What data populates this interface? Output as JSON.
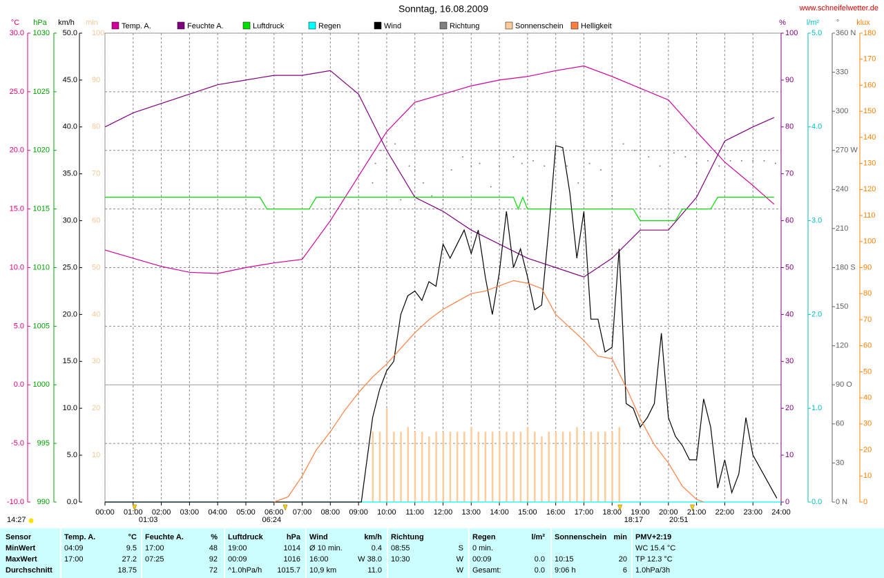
{
  "chart_data": {
    "type": "line",
    "title": "Sonntag, 16.08.2009",
    "source": "www.schneifelwetter.de",
    "grid": true,
    "xlim": [
      0,
      24
    ],
    "xticks": [
      {
        "value": 0,
        "label": "00:00"
      },
      {
        "value": 1,
        "label": "01:00"
      },
      {
        "value": 2,
        "label": "02:00"
      },
      {
        "value": 3,
        "label": "03:00"
      },
      {
        "value": 4,
        "label": "04:00"
      },
      {
        "value": 5,
        "label": "05:00"
      },
      {
        "value": 6,
        "label": "06:00"
      },
      {
        "value": 7,
        "label": "07:00"
      },
      {
        "value": 8,
        "label": "08:00"
      },
      {
        "value": 9,
        "label": "09:00"
      },
      {
        "value": 10,
        "label": "10:00"
      },
      {
        "value": 11,
        "label": "11:00"
      },
      {
        "value": 12,
        "label": "12:00"
      },
      {
        "value": 13,
        "label": "13:00"
      },
      {
        "value": 14,
        "label": "14:00"
      },
      {
        "value": 15,
        "label": "15:00"
      },
      {
        "value": 16,
        "label": "16:00"
      },
      {
        "value": 17,
        "label": "17:00"
      },
      {
        "value": 18,
        "label": "18:00"
      },
      {
        "value": 19,
        "label": "19:00"
      },
      {
        "value": 20,
        "label": "20:00"
      },
      {
        "value": 21,
        "label": "21:00"
      },
      {
        "value": 22,
        "label": "22:00"
      },
      {
        "value": 23,
        "label": "23:00"
      },
      {
        "value": 24,
        "label": "24:00"
      }
    ],
    "axes": [
      {
        "unit": "°C",
        "color": "#e0007f",
        "lim": [
          -10,
          30
        ],
        "ticks": [
          {
            "value": -10,
            "label": "-10.0"
          },
          {
            "value": -5,
            "label": "-5.0"
          },
          {
            "value": 0,
            "label": "0.0"
          },
          {
            "value": 5,
            "label": "5.0"
          },
          {
            "value": 10,
            "label": "10.0"
          },
          {
            "value": 15,
            "label": "15.0"
          },
          {
            "value": 20,
            "label": "20.0"
          },
          {
            "value": 25,
            "label": "25.0"
          },
          {
            "value": 30,
            "label": "30.0"
          }
        ]
      },
      {
        "unit": "hPa",
        "color": "#00a000",
        "lim": [
          990,
          1030
        ],
        "ticks": [
          990,
          995,
          1000,
          1005,
          1010,
          1015,
          1020,
          1025,
          1030
        ]
      },
      {
        "unit": "km/h",
        "color": "#000000",
        "lim": [
          0,
          50
        ],
        "ticks": [
          {
            "value": 0,
            "label": "0.0"
          },
          {
            "value": 5,
            "label": "5.0"
          },
          {
            "value": 10,
            "label": "10.0"
          },
          {
            "value": 15,
            "label": "15.0"
          },
          {
            "value": 20,
            "label": "20.0"
          },
          {
            "value": 25,
            "label": "25.0"
          },
          {
            "value": 30,
            "label": "30.0"
          },
          {
            "value": 35,
            "label": "35.0"
          },
          {
            "value": 40,
            "label": "40.0"
          },
          {
            "value": 45,
            "label": "45.0"
          },
          {
            "value": 50,
            "label": "50.0"
          }
        ]
      },
      {
        "unit": "min",
        "color": "#f5c896",
        "lim": [
          0,
          100
        ],
        "ticks": [
          10,
          20,
          30,
          40,
          50,
          60,
          70,
          80,
          90,
          100
        ]
      },
      {
        "unit": "%",
        "color": "#800080",
        "lim": [
          0,
          100
        ],
        "ticks": [
          0,
          10,
          20,
          30,
          40,
          50,
          60,
          70,
          80,
          90,
          100
        ]
      },
      {
        "unit": "l/m²",
        "color": "#00c0c0",
        "lim": [
          0,
          5
        ],
        "ticks": [
          {
            "value": 0,
            "label": "0.0"
          },
          {
            "value": 1,
            "label": "1.0"
          },
          {
            "value": 2,
            "label": "2.0"
          },
          {
            "value": 3,
            "label": "3.0"
          },
          {
            "value": 4,
            "label": "4.0"
          },
          {
            "value": 5,
            "label": "5.0"
          }
        ]
      },
      {
        "unit": "°",
        "color": "#606060",
        "lim": [
          0,
          360
        ],
        "ticks": [
          {
            "value": 0,
            "label": "0 N"
          },
          30,
          60,
          {
            "value": 90,
            "label": "90 O"
          },
          120,
          150,
          {
            "value": 180,
            "label": "180 S"
          },
          210,
          240,
          {
            "value": 270,
            "label": "270 W"
          },
          300,
          330,
          {
            "value": 360,
            "label": "360 N"
          }
        ]
      },
      {
        "unit": "klux",
        "color": "#ff8000",
        "lim": [
          0,
          180
        ],
        "ticks": [
          0,
          10,
          20,
          30,
          40,
          50,
          60,
          70,
          80,
          90,
          100,
          110,
          120,
          130,
          140,
          150,
          160,
          170,
          180
        ]
      }
    ],
    "series": [
      {
        "name": "Temp. A.",
        "type": "line",
        "axis": 0,
        "color": "#d0009a",
        "x": [
          0,
          1,
          2,
          3,
          4,
          5,
          6,
          7,
          8,
          9,
          10,
          11,
          12,
          13,
          14,
          15,
          16,
          17,
          18,
          19,
          20,
          21,
          22,
          23,
          23.75
        ],
        "values": [
          11.5,
          10.8,
          10.1,
          9.6,
          9.5,
          10.0,
          10.4,
          10.7,
          14.0,
          17.8,
          21.6,
          24.1,
          24.8,
          25.5,
          26.0,
          26.3,
          26.8,
          27.2,
          26.3,
          25.3,
          24.3,
          21.6,
          19.0,
          17.0,
          15.4
        ]
      },
      {
        "name": "Feuchte A.",
        "type": "line",
        "axis": 4,
        "color": "#800080",
        "x": [
          0,
          1,
          2,
          3,
          4,
          5,
          6,
          7,
          8,
          9,
          10,
          11,
          12,
          13,
          14,
          15,
          16,
          17,
          18,
          19,
          20,
          21,
          22,
          23,
          23.75
        ],
        "values": [
          80,
          83,
          85,
          87,
          89,
          90,
          91,
          91,
          92,
          87,
          75,
          65,
          62,
          58,
          55,
          52,
          50,
          48,
          52,
          58,
          58,
          65,
          77,
          80,
          82
        ]
      },
      {
        "name": "Luftdruck",
        "type": "line",
        "axis": 1,
        "color": "#00e000",
        "x": [
          0,
          5.5,
          5.75,
          7.25,
          7.5,
          14.5,
          14.67,
          14.83,
          15.0,
          18.75,
          19.0,
          20.25,
          20.5,
          21.5,
          21.75,
          23.75
        ],
        "values": [
          1016,
          1016,
          1015,
          1015,
          1016,
          1016,
          1015,
          1016,
          1015,
          1015,
          1014,
          1014,
          1015,
          1015,
          1016,
          1016
        ]
      },
      {
        "name": "Regen",
        "type": "line",
        "axis": 5,
        "color": "#00ffff",
        "x": [
          0,
          24
        ],
        "values": [
          0,
          0
        ]
      },
      {
        "name": "Wind",
        "type": "line",
        "axis": 2,
        "color": "#000000",
        "x": [
          0,
          9.1,
          9.5,
          9.75,
          10,
          10.25,
          10.5,
          10.75,
          11,
          11.25,
          11.5,
          11.75,
          12,
          12.25,
          12.5,
          12.75,
          13,
          13.25,
          13.5,
          13.75,
          14,
          14.25,
          14.5,
          14.75,
          15,
          15.25,
          15.5,
          15.75,
          16,
          16.25,
          16.5,
          16.75,
          17,
          17.25,
          17.5,
          17.75,
          18,
          18.25,
          18.5,
          18.75,
          19,
          19.25,
          19.5,
          19.75,
          20,
          20.25,
          20.5,
          20.75,
          21,
          21.25,
          21.5,
          21.75,
          22,
          22.25,
          22.5,
          22.75,
          23,
          23.85
        ],
        "values": [
          0,
          0,
          9,
          12,
          14,
          15,
          20,
          22,
          22.5,
          21.5,
          23.5,
          23,
          27.5,
          26,
          27.5,
          29,
          26.5,
          29,
          24,
          20,
          24.5,
          31,
          25,
          27,
          24,
          20.5,
          21,
          29,
          38,
          37.8,
          33,
          26,
          31,
          19.5,
          19.5,
          16,
          16.5,
          27,
          10.5,
          10,
          8,
          9,
          10.5,
          18,
          9,
          7,
          6,
          4.5,
          4.5,
          11,
          8,
          1.5,
          4.5,
          1,
          3,
          9,
          5,
          0.4
        ]
      },
      {
        "name": "Richtung",
        "type": "dots",
        "axis": 6,
        "color": "#808080",
        "x": [
          9.5,
          9.6,
          9.8,
          10,
          10.3,
          10.5,
          10.8,
          11,
          11.3,
          11.6,
          12,
          12.3,
          12.7,
          13,
          13.3,
          13.7,
          14,
          14.5,
          14.8,
          15.2,
          15.6,
          16,
          16.4,
          16.8,
          17.2,
          17.6,
          18,
          18.4,
          18.8,
          19.3,
          19.7,
          20.2,
          20.6,
          21,
          21.4,
          21.8,
          22.2,
          22.6,
          23,
          23.4,
          23.8
        ],
        "values": [
          245,
          260,
          270,
          255,
          275,
          232,
          258,
          255,
          245,
          235,
          232,
          255,
          265,
          258,
          260,
          242,
          258,
          265,
          260,
          262,
          258,
          275,
          258,
          245,
          260,
          255,
          235,
          275,
          270,
          265,
          258,
          268,
          265,
          260,
          262,
          258,
          262,
          262,
          262,
          262,
          260
        ]
      },
      {
        "name": "Sonnenschein",
        "type": "bar",
        "axis": 3,
        "color": "#ffcc99",
        "x": [
          9.5,
          9.75,
          10,
          10.25,
          10.5,
          10.75,
          11,
          11.25,
          11.5,
          11.75,
          12,
          12.25,
          12.5,
          12.75,
          13,
          13.25,
          13.5,
          13.75,
          14,
          14.25,
          14.5,
          14.75,
          15,
          15.25,
          15.5,
          15.75,
          16,
          16.25,
          16.5,
          16.75,
          17,
          17.25,
          17.5,
          17.75,
          18,
          18.25
        ],
        "values": [
          15,
          15,
          20,
          15,
          15,
          16,
          15,
          15,
          14,
          15,
          15,
          15,
          15,
          15,
          16,
          15,
          15,
          15,
          15,
          15,
          15,
          15,
          16,
          15,
          14,
          15,
          15,
          15,
          15,
          16,
          15,
          15,
          15,
          15,
          15,
          16
        ]
      },
      {
        "name": "Helligkeit",
        "type": "line",
        "axis": 7,
        "color": "#ff8040",
        "x": [
          6,
          6.5,
          7,
          7.5,
          8,
          8.5,
          9,
          9.5,
          10,
          10.5,
          11,
          11.5,
          12,
          12.5,
          13,
          13.5,
          14,
          14.5,
          15,
          15.5,
          16,
          16.5,
          17,
          17.5,
          18,
          18.5,
          19,
          19.5,
          20,
          20.5,
          21,
          21.25
        ],
        "values": [
          0,
          2,
          10,
          20,
          27,
          35,
          42,
          48,
          53,
          59,
          65,
          70,
          74,
          77,
          80,
          81,
          83,
          85,
          84,
          82,
          72,
          67,
          62,
          56,
          55,
          44,
          32,
          22,
          15,
          6,
          1,
          0
        ]
      }
    ],
    "moon": "14:27",
    "events": [
      {
        "value": 1.05,
        "label": "01:03"
      },
      {
        "value": 6.4,
        "label": "06:24"
      },
      {
        "value": 18.28,
        "label": "18:17"
      },
      {
        "value": 20.85,
        "label": "20:51"
      }
    ]
  },
  "table": {
    "rows": [
      [
        [
          "Sensor"
        ],
        [
          "Temp. A.",
          "°C"
        ],
        [
          "Feuchte A.",
          "%"
        ],
        [
          "Luftdruck",
          "hPa"
        ],
        [
          "Wind",
          "km/h"
        ],
        [
          "Richtung"
        ],
        [
          "Regen",
          "l/m²"
        ],
        [
          "Sonnenschein",
          "min"
        ],
        [
          "PMV+2:19"
        ]
      ],
      [
        [
          "MinWert"
        ],
        [
          "04:09",
          "9.5"
        ],
        [
          "17:00",
          "48"
        ],
        [
          "19:00",
          "1014"
        ],
        [
          "Ø 10 min.",
          "0.4"
        ],
        [
          "08:55",
          "S"
        ],
        [
          "0 min."
        ],
        [],
        [
          "WC 15.4 °C"
        ]
      ],
      [
        [
          "MaxWert"
        ],
        [
          "17:00",
          "27.2"
        ],
        [
          "07:25",
          "92"
        ],
        [
          "00:09",
          "1016"
        ],
        [
          "16:00",
          "W 38.0"
        ],
        [
          "10:30",
          "W"
        ],
        [
          "00:09",
          "0.0"
        ],
        [
          "10:15",
          "20"
        ],
        [
          "TP 12.3 °C"
        ]
      ],
      [
        [
          "Durchschnitt"
        ],
        [
          null,
          "18.75"
        ],
        [
          null,
          "72"
        ],
        [
          "^1.0hPa/h",
          "1015.7"
        ],
        [
          "10,9 km",
          "11.0"
        ],
        [
          null,
          "W"
        ],
        [
          "Gesamt:",
          "0.0"
        ],
        [
          "9:06 h",
          "6"
        ],
        [
          "1.0hPa/3h"
        ]
      ]
    ]
  }
}
